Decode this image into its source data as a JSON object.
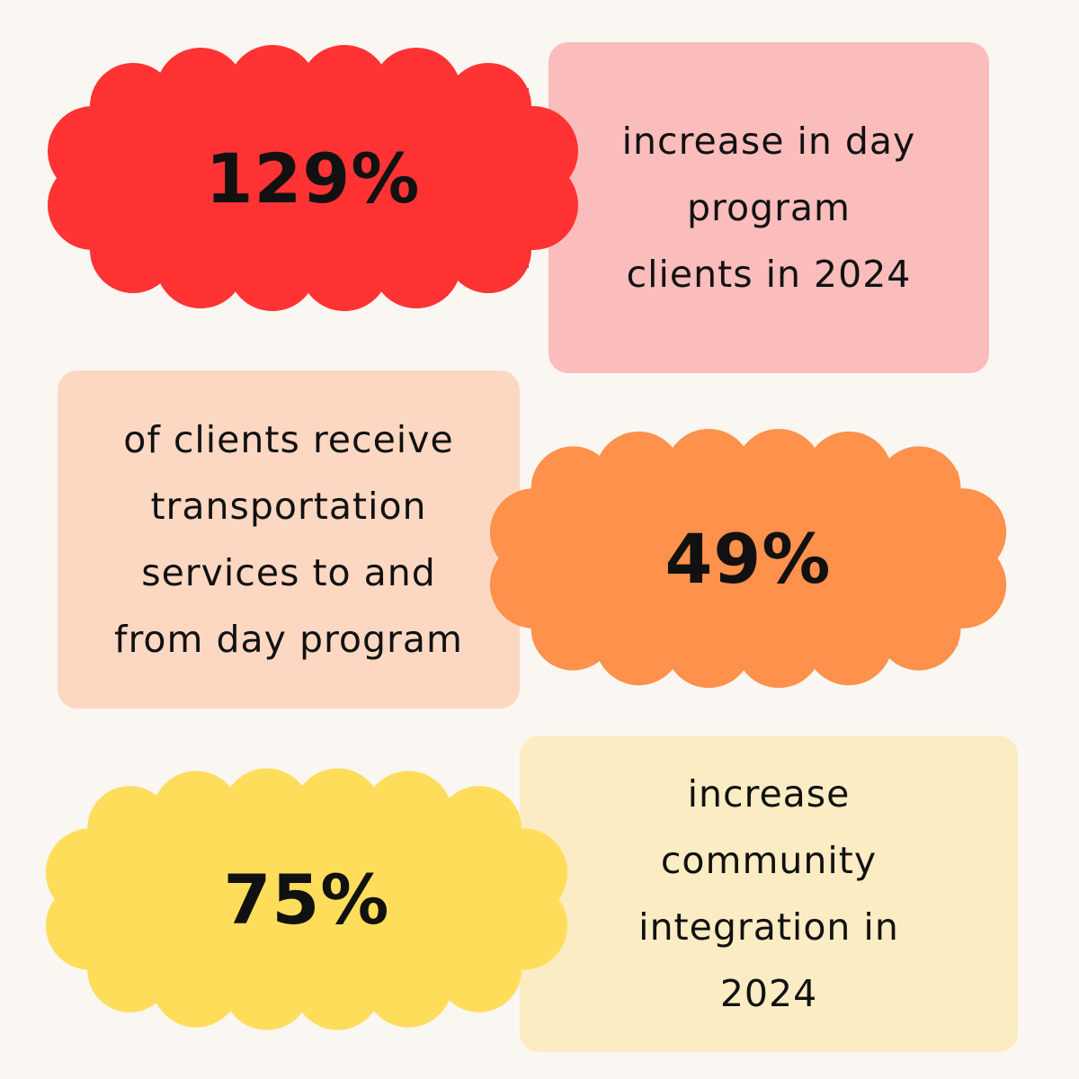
{
  "colors": {
    "background": "#faf6f1",
    "stat1_cloud": "#ff3333",
    "stat1_box": "#fbbcbc",
    "stat2_cloud": "#fe914b",
    "stat2_box": "#fcd8c3",
    "stat3_cloud": "#fedd5b",
    "stat3_box": "#fbecc3",
    "text": "#111111"
  },
  "stats": [
    {
      "value": "129%",
      "description": "increase in day\nprogram\nclients in 2024"
    },
    {
      "value": "49%",
      "description": "of clients receive\ntransportation\nservices to and\nfrom day program"
    },
    {
      "value": "75%",
      "description": "increase\ncommunity\nintegration in\n2024"
    }
  ]
}
